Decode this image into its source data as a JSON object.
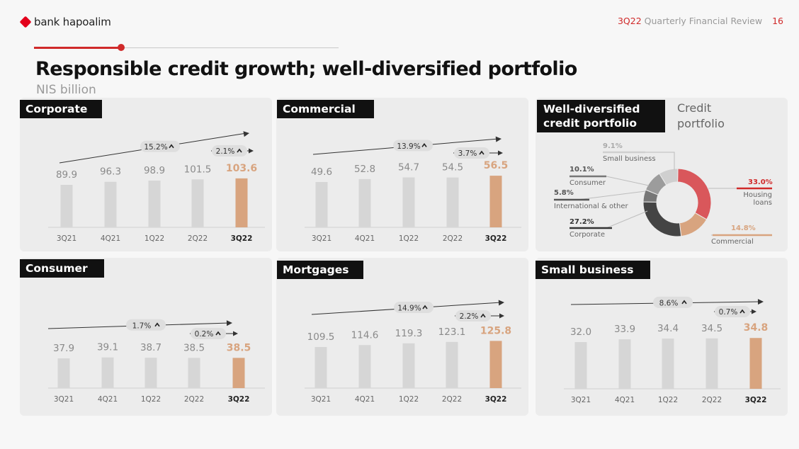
{
  "header": {
    "brand": "bank hapoalim",
    "report_accent": "3Q22",
    "report_title": "Quarterly Financial Review",
    "page_number": "16"
  },
  "title": "Responsible credit growth; well-diversified portfolio",
  "subtitle": "NIS billion",
  "colors": {
    "bar": "#d6d6d6",
    "highlight": "#d8a47f",
    "accent": "#d02a2a"
  },
  "chart_data": [
    {
      "type": "bar",
      "title": "Corporate",
      "categories": [
        "3Q21",
        "4Q21",
        "1Q22",
        "2Q22",
        "3Q22"
      ],
      "values": [
        89.9,
        96.3,
        98.9,
        101.5,
        103.6
      ],
      "growth_long": "15.2%",
      "growth_short": "2.1%"
    },
    {
      "type": "bar",
      "title": "Commercial",
      "categories": [
        "3Q21",
        "4Q21",
        "1Q22",
        "2Q22",
        "3Q22"
      ],
      "values": [
        49.6,
        52.8,
        54.7,
        54.5,
        56.5
      ],
      "growth_long": "13.9%",
      "growth_short": "3.7%"
    },
    {
      "type": "bar",
      "title": "Consumer",
      "categories": [
        "3Q21",
        "4Q21",
        "1Q22",
        "2Q22",
        "3Q22"
      ],
      "values": [
        37.9,
        39.1,
        38.7,
        38.5,
        38.5
      ],
      "growth_long": "1.7%",
      "growth_short": "0.2%"
    },
    {
      "type": "bar",
      "title": "Mortgages",
      "categories": [
        "3Q21",
        "4Q21",
        "1Q22",
        "2Q22",
        "3Q22"
      ],
      "values": [
        109.5,
        114.6,
        119.3,
        123.1,
        125.8
      ],
      "growth_long": "14.9%",
      "growth_short": "2.2%"
    },
    {
      "type": "bar",
      "title": "Small business",
      "categories": [
        "3Q21",
        "4Q21",
        "1Q22",
        "2Q22",
        "3Q22"
      ],
      "values": [
        32.0,
        33.9,
        34.4,
        34.5,
        34.8
      ],
      "growth_long": "8.6%",
      "growth_short": "0.7%"
    },
    {
      "type": "pie",
      "title": "Well-diversified credit portfolio",
      "subtitle": "Credit portfolio",
      "segments": [
        {
          "name": "Housing loans",
          "value": 33.0,
          "pct": "33.0%",
          "color": "#d9575b"
        },
        {
          "name": "Commercial",
          "value": 14.8,
          "pct": "14.8%",
          "color": "#d8a47f"
        },
        {
          "name": "Corporate",
          "value": 27.2,
          "pct": "27.2%",
          "color": "#444444"
        },
        {
          "name": "International & other",
          "value": 5.8,
          "pct": "5.8%",
          "color": "#777777"
        },
        {
          "name": "Consumer",
          "value": 10.1,
          "pct": "10.1%",
          "color": "#9c9c9c"
        },
        {
          "name": "Small business",
          "value": 9.1,
          "pct": "9.1%",
          "color": "#cfcfcf"
        }
      ]
    }
  ]
}
